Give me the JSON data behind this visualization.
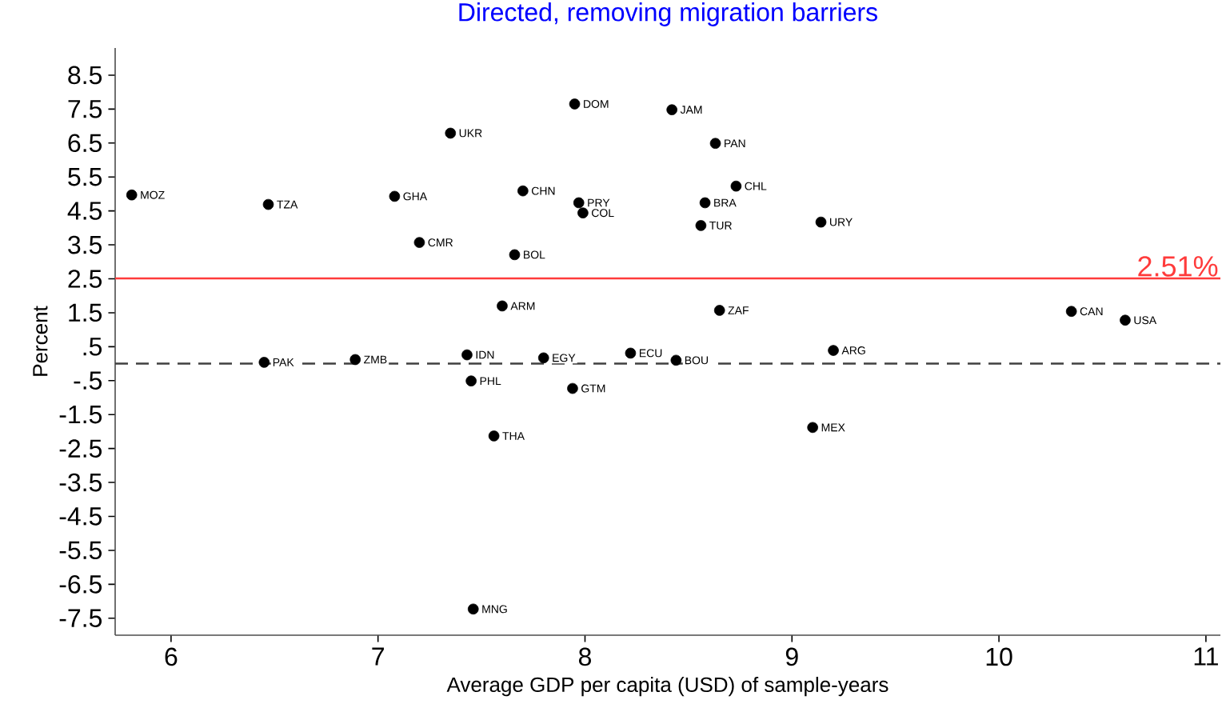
{
  "chart_data": {
    "type": "scatter",
    "title": "Directed, removing migration barriers",
    "xlabel": "Average GDP per capita (USD) of sample-years",
    "ylabel": "Percent",
    "xlim": [
      5.73,
      11.07
    ],
    "ylim": [
      -8,
      9.3
    ],
    "xticks": [
      6,
      7,
      8,
      9,
      10,
      11
    ],
    "yticks": [
      8.5,
      7.5,
      6.5,
      5.5,
      4.5,
      3.5,
      2.5,
      1.5,
      {
        "value": 0.5,
        "label": ".5"
      },
      {
        "value": -0.5,
        "label": "-.5"
      },
      -1.5,
      -2.5,
      -3.5,
      -4.5,
      -5.5,
      -6.5,
      -7.5
    ],
    "grid": false,
    "ref_lines": [
      {
        "axis": "y",
        "value": 2.51,
        "label": "2.51%",
        "color": "#ff3b3b",
        "line_style": "solid"
      },
      {
        "axis": "y",
        "value": 0,
        "color": "#404040",
        "line_style": "dashed"
      }
    ],
    "series": [
      {
        "color": "#000000",
        "x": [
          5.81,
          6.47,
          7.08,
          7.35,
          7.2,
          7.7,
          7.66,
          7.6,
          7.95,
          7.97,
          7.99,
          6.45,
          6.89,
          7.43,
          7.8,
          7.45,
          7.94,
          7.56,
          7.46,
          8.42,
          8.63,
          8.73,
          8.58,
          8.56,
          9.14,
          8.65,
          10.35,
          10.61,
          8.22,
          8.44,
          9.2,
          9.1
        ],
        "values": [
          4.97,
          4.69,
          4.93,
          6.79,
          3.57,
          5.09,
          3.21,
          1.7,
          7.65,
          4.74,
          4.44,
          0.04,
          0.12,
          0.26,
          0.17,
          -0.51,
          -0.73,
          -2.13,
          -7.23,
          7.48,
          6.49,
          5.23,
          4.74,
          4.07,
          4.17,
          1.57,
          1.54,
          1.28,
          0.31,
          0.1,
          0.39,
          -1.88
        ],
        "value_labels": [
          "MOZ",
          "TZA",
          "GHA",
          "UKR",
          "CMR",
          "CHN",
          "BOL",
          "ARM",
          "DOM",
          "PRY",
          "COL",
          "PAK",
          "ZMB",
          "IDN",
          "EGY",
          "PHL",
          "GTM",
          "THA",
          "MNG",
          "JAM",
          "PAN",
          "CHL",
          "BRA",
          "TUR",
          "URY",
          "ZAF",
          "CAN",
          "USA",
          "ECU",
          "BOU",
          "ARG",
          "MEX"
        ]
      }
    ]
  }
}
